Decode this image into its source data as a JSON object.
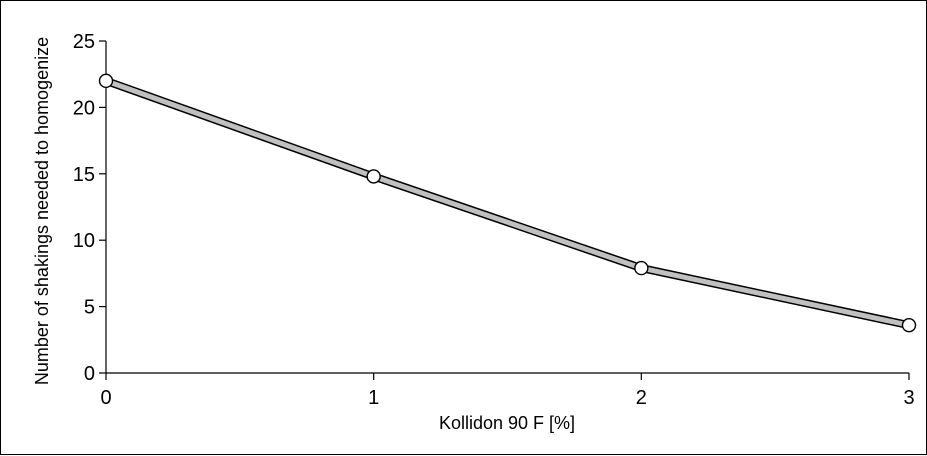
{
  "chart_data": {
    "type": "line",
    "title": "",
    "xlabel": "Kollidon 90 F [%]",
    "ylabel": "Number of shakings needed to homogenize",
    "x": [
      0,
      1,
      2,
      3
    ],
    "series": [
      {
        "values": [
          22,
          14.8,
          7.9,
          3.6
        ]
      }
    ],
    "xlim": [
      0,
      3
    ],
    "ylim": [
      0,
      25
    ],
    "xticks": [
      "0",
      "1",
      "2",
      "3"
    ],
    "yticks": [
      "0",
      "5",
      "10",
      "15",
      "20",
      "25"
    ],
    "grid": false,
    "legend": "none",
    "line_color": "#c0c0c0",
    "line_edge_color": "#000000",
    "marker_fill": "#ffffff"
  }
}
